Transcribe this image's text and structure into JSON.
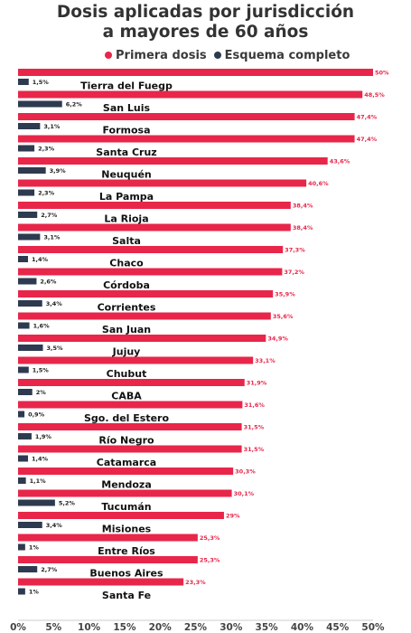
{
  "chart_data": {
    "type": "bar",
    "orientation": "horizontal",
    "title": "Dosis aplicadas por jurisdicción a mayores de 60 años",
    "title_lines": [
      "Dosis aplicadas por jurisdicción",
      "a mayores de 60 años"
    ],
    "legend_position": "top",
    "xlim": [
      0,
      50
    ],
    "x_ticks": [
      "0%",
      "5%",
      "10%",
      "15%",
      "20%",
      "25%",
      "30%",
      "35%",
      "40%",
      "45%",
      "50%"
    ],
    "grid": false,
    "categories": [
      "Tierra del Fuegp",
      "San Luis",
      "Formosa",
      "Santa Cruz",
      "Neuquén",
      "La Pampa",
      "La Rioja",
      "Salta",
      "Chaco",
      "Córdoba",
      "Corrientes",
      "San Juan",
      "Jujuy",
      "Chubut",
      "CABA",
      "Sgo. del Estero",
      "Río Negro",
      "Catamarca",
      "Mendoza",
      "Tucumán",
      "Misiones",
      "Entre Ríos",
      "Buenos Aires",
      "Santa Fe"
    ],
    "series": [
      {
        "name": "Primera dosis",
        "color": "#e8264a",
        "values": [
          50,
          48.5,
          47.4,
          47.4,
          43.6,
          40.6,
          38.4,
          38.4,
          37.3,
          37.2,
          35.9,
          35.6,
          34.9,
          33.1,
          31.9,
          31.6,
          31.5,
          31.5,
          30.3,
          30.1,
          29,
          25.3,
          25.3,
          23.3
        ],
        "labels": [
          "50%",
          "48,5%",
          "47,4%",
          "47,4%",
          "43,6%",
          "40,6%",
          "38,4%",
          "38,4%",
          "37,3%",
          "37,2%",
          "35,9%",
          "35,6%",
          "34,9%",
          "33,1%",
          "31,9%",
          "31,6%",
          "31,5%",
          "31,5%",
          "30,3%",
          "30,1%",
          "29%",
          "25,3%",
          "25,3%",
          "23,3%"
        ]
      },
      {
        "name": "Esquema completo",
        "color": "#2e3a4f",
        "values": [
          1.5,
          6.2,
          3.1,
          2.3,
          3.9,
          2.3,
          2.7,
          3.1,
          1.4,
          2.6,
          3.4,
          1.6,
          3.5,
          1.5,
          2,
          0.9,
          1.9,
          1.4,
          1.1,
          5.2,
          3.4,
          1,
          2.7,
          1
        ],
        "labels": [
          "1,5%",
          "6,2%",
          "3,1%",
          "2,3%",
          "3,9%",
          "2,3%",
          "2,7%",
          "3,1%",
          "1,4%",
          "2,6%",
          "3,4%",
          "1,6%",
          "3,5%",
          "1,5%",
          "2%",
          "0,9%",
          "1,9%",
          "1,4%",
          "1,1%",
          "5,2%",
          "3,4%",
          "1%",
          "2,7%",
          "1%"
        ]
      }
    ]
  }
}
